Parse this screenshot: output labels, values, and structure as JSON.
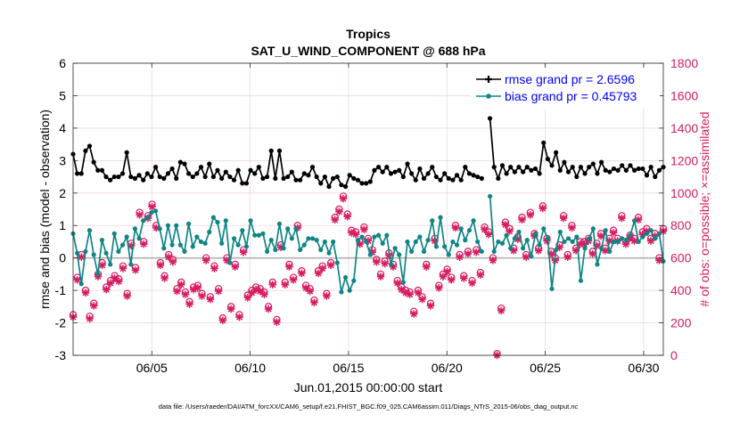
{
  "chart_data": {
    "type": "line",
    "title": "Tropics",
    "subtitle": "SAT_U_WIND_COMPONENT @ 688 hPa",
    "xlabel": "Jun.01,2015 00:00:00 start",
    "ylabel": "rmse and bias (model - observation)",
    "y2label": "# of obs: o=possible; ×=assimilated",
    "footer": "data file: /Users/raeder/DAI/ATM_forcXX/CAM6_setup/f.e21.FHIST_BGC.f09_025.CAM6assim.011/Diags_NTrS_2015-06/obs_diag_output.nc",
    "xlim": [
      1.0,
      31.0
    ],
    "ylim": [
      -3,
      6
    ],
    "y2lim": [
      0,
      1800
    ],
    "x_ticks": [
      5,
      10,
      15,
      20,
      25,
      30
    ],
    "x_tick_labels": [
      "06/05",
      "06/10",
      "06/15",
      "06/20",
      "06/25",
      "06/30"
    ],
    "y_ticks": [
      -3,
      -2,
      -1,
      0,
      1,
      2,
      3,
      4,
      5,
      6
    ],
    "y_tick_labels": [
      "-3",
      "-2",
      "-1",
      "0",
      "1",
      "2",
      "3",
      "4",
      "5",
      "6"
    ],
    "y2_ticks": [
      0,
      200,
      400,
      600,
      800,
      1000,
      1200,
      1400,
      1600,
      1800
    ],
    "y2_tick_labels": [
      "0",
      "200",
      "400",
      "600",
      "800",
      "1000",
      "1200",
      "1400",
      "1600",
      "1800"
    ],
    "grid": true,
    "legend_position": "top-right",
    "reference_line": 0,
    "colors": {
      "rmse": "#000000",
      "bias": "#0f8585",
      "obs": "#d81b60",
      "legend_text": "#0000ff",
      "grid": "#e9c8d8",
      "zero_line": "#b0b0b0"
    },
    "series": [
      {
        "name": "rmse grand pr = 2.6596",
        "role": "rmse",
        "values": [
          3.2,
          2.6,
          2.6,
          3.3,
          3.45,
          2.95,
          2.7,
          2.7,
          2.5,
          2.4,
          2.5,
          2.5,
          2.6,
          3.25,
          2.5,
          2.45,
          2.55,
          2.4,
          2.6,
          2.5,
          2.8,
          2.5,
          2.45,
          2.6,
          2.75,
          2.45,
          2.95,
          2.9,
          2.6,
          2.5,
          2.6,
          2.8,
          2.5,
          2.9,
          2.5,
          2.7,
          2.45,
          2.65,
          2.5,
          2.4,
          2.7,
          2.3,
          2.3,
          2.7,
          2.6,
          2.8,
          2.45,
          2.5,
          3.3,
          2.45,
          3.3,
          2.45,
          2.5,
          2.65,
          2.4,
          2.4,
          2.6,
          2.55,
          2.8,
          2.5,
          2.3,
          2.5,
          2.2,
          2.45,
          2.5,
          2.25,
          2.2,
          2.55,
          2.45,
          2.4,
          2.3,
          2.3,
          2.35,
          2.7,
          2.8,
          2.65,
          2.8,
          2.6,
          2.65,
          2.7,
          2.5,
          2.9,
          2.6,
          2.4,
          2.75,
          2.45,
          2.6,
          2.8,
          2.5,
          2.4,
          2.6,
          2.45,
          2.4,
          2.55,
          2.4,
          2.8,
          2.6,
          2.55,
          2.5,
          2.45,
          null,
          4.3,
          2.8,
          2.45,
          2.85,
          2.6,
          2.8,
          2.65,
          2.8,
          2.65,
          2.8,
          2.7,
          2.75,
          2.6,
          3.55,
          3.05,
          2.85,
          3.25,
          2.7,
          2.95,
          2.65,
          2.8,
          2.5,
          2.8,
          2.6,
          2.8,
          2.9,
          2.6,
          2.95,
          2.7,
          2.65,
          2.75,
          2.7,
          2.85,
          2.7,
          2.85,
          2.7,
          2.75,
          2.75,
          2.55,
          2.8,
          2.5,
          2.7,
          2.8
        ]
      },
      {
        "name": "bias grand pr = 0.45793",
        "role": "bias",
        "values": [
          0.75,
          0.15,
          -0.8,
          0.2,
          0.85,
          0.1,
          -0.5,
          0.55,
          0.15,
          -0.2,
          0.75,
          0.2,
          0.4,
          0.65,
          -0.2,
          0.9,
          0.6,
          1.15,
          1.25,
          1.4,
          1.45,
          0.9,
          0.3,
          1.0,
          0.4,
          1.0,
          0.4,
          0.2,
          1.05,
          0.35,
          0.65,
          0.5,
          0.45,
          0.8,
          1.25,
          1.1,
          0.45,
          1.15,
          -0.15,
          0.6,
          0.4,
          0.85,
          0.35,
          1.15,
          0.7,
          0.7,
          0.75,
          0.2,
          0.55,
          0.25,
          1.05,
          0.3,
          0.9,
          0.6,
          0.9,
          0.25,
          0.4,
          0.6,
          0.6,
          0.55,
          0.25,
          0.5,
          0.15,
          0.5,
          -0.15,
          -1.05,
          -0.6,
          -1.0,
          -0.7,
          0.55,
          0.65,
          0.5,
          0.1,
          0.65,
          0.7,
          0.45,
          0.7,
          -0.2,
          0.3,
          0.1,
          -0.75,
          0.5,
          0.2,
          0.5,
          0.65,
          0.2,
          0.55,
          1.15,
          0.35,
          1.25,
          0.35,
          0.1,
          0.5,
          0.4,
          0.9,
          0.55,
          0.85,
          1.15,
          0.5,
          0.2,
          null,
          1.9,
          0.2,
          0.5,
          0.45,
          0.7,
          0.3,
          0.6,
          0.8,
          0.3,
          0.55,
          0.05,
          0.75,
          0.4,
          0.9,
          0.6,
          -0.95,
          0.25,
          0.8,
          0.5,
          0.6,
          0.5,
          0.65,
          -0.7,
          0.3,
          0.6,
          0.9,
          -0.2,
          0.3,
          0.85,
          0.2,
          0.5,
          0.5,
          0.6,
          0.55,
          0.7,
          1.15,
          0.5,
          0.65,
          0.75,
          0.85,
          0.6,
          0.75,
          -0.1
        ]
      },
      {
        "name": "obs possible",
        "role": "obs_possible",
        "axis": "y2",
        "values": [
          250,
          480,
          620,
          400,
          240,
          320,
          500,
          570,
          420,
          460,
          490,
          470,
          550,
          380,
          690,
          540,
          880,
          700,
          860,
          930,
          800,
          570,
          490,
          620,
          590,
          410,
          450,
          390,
          330,
          420,
          430,
          380,
          600,
          360,
          550,
          410,
          230,
          600,
          300,
          560,
          250,
          650,
          370,
          400,
          420,
          410,
          390,
          300,
          450,
          220,
          680,
          450,
          560,
          480,
          800,
          520,
          430,
          410,
          340,
          520,
          550,
          380,
          570,
          850,
          900,
          980,
          870,
          770,
          760,
          700,
          790,
          720,
          650,
          590,
          500,
          580,
          630,
          560,
          460,
          420,
          400,
          390,
          270,
          400,
          360,
          560,
          320,
          720,
          430,
          500,
          530,
          480,
          800,
          620,
          490,
          640,
          460,
          650,
          510,
          790,
          760,
          600,
          10,
          290,
          820,
          780,
          660,
          730,
          850,
          620,
          880,
          750,
          660,
          920,
          720,
          640,
          600,
          680,
          860,
          620,
          800,
          660,
          700,
          700,
          720,
          640,
          690,
          750,
          660,
          720,
          770,
          720,
          860,
          700,
          740,
          720,
          850,
          760,
          780,
          720,
          750,
          600,
          780
        ]
      },
      {
        "name": "obs assimilated",
        "role": "obs_assimilated",
        "axis": "y2",
        "values": [
          235,
          465,
          605,
          385,
          225,
          305,
          485,
          555,
          405,
          445,
          475,
          455,
          535,
          365,
          675,
          525,
          865,
          685,
          845,
          915,
          785,
          555,
          475,
          605,
          575,
          395,
          435,
          375,
          315,
          405,
          415,
          365,
          585,
          345,
          535,
          395,
          215,
          585,
          285,
          545,
          235,
          635,
          355,
          385,
          405,
          395,
          375,
          285,
          435,
          205,
          665,
          435,
          545,
          465,
          785,
          505,
          415,
          395,
          325,
          505,
          535,
          365,
          555,
          835,
          885,
          965,
          855,
          755,
          745,
          685,
          775,
          705,
          635,
          575,
          485,
          565,
          615,
          545,
          445,
          405,
          385,
          375,
          255,
          385,
          345,
          545,
          305,
          705,
          415,
          485,
          515,
          465,
          785,
          605,
          475,
          625,
          445,
          635,
          495,
          775,
          745,
          585,
          0,
          275,
          805,
          765,
          645,
          715,
          835,
          605,
          865,
          735,
          645,
          905,
          705,
          625,
          585,
          665,
          845,
          605,
          785,
          645,
          685,
          685,
          705,
          625,
          675,
          735,
          645,
          705,
          755,
          705,
          845,
          685,
          725,
          705,
          835,
          745,
          765,
          705,
          735,
          585,
          765
        ]
      }
    ]
  }
}
